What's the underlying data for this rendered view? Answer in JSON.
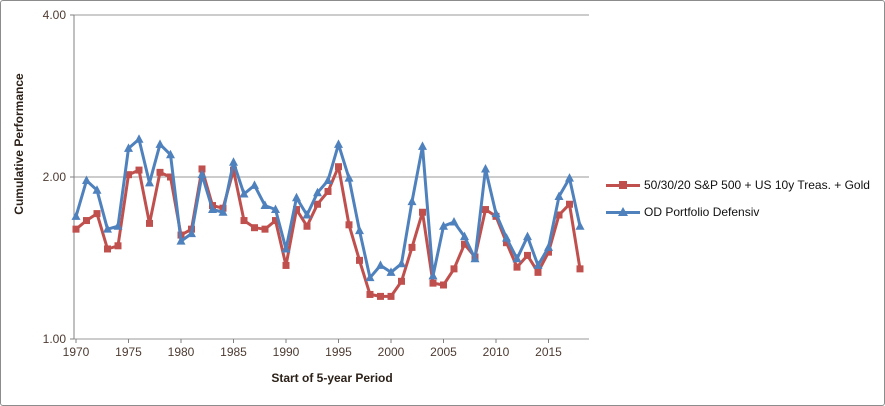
{
  "chart_data": {
    "type": "line",
    "title": "",
    "xlabel": "Start of 5-year Period",
    "ylabel": "Cumulative Performance",
    "y_scale": "log2",
    "ylim": [
      1.0,
      4.0
    ],
    "grid": "horizontal",
    "legend_position": "middle-right",
    "x": [
      1970,
      1971,
      1972,
      1973,
      1974,
      1975,
      1976,
      1977,
      1978,
      1979,
      1980,
      1981,
      1982,
      1983,
      1984,
      1985,
      1986,
      1987,
      1988,
      1989,
      1990,
      1991,
      1992,
      1993,
      1994,
      1995,
      1996,
      1997,
      1998,
      1999,
      2000,
      2001,
      2002,
      2003,
      2004,
      2005,
      2006,
      2007,
      2008,
      2009,
      2010,
      2011,
      2012,
      2013,
      2014,
      2015,
      2016,
      2017,
      2018
    ],
    "x_tick_years": [
      1970,
      1975,
      1980,
      1985,
      1990,
      1995,
      2000,
      2005,
      2010,
      2015
    ],
    "y_ticks": [
      {
        "v": 4.0,
        "label": "4.00"
      },
      {
        "v": 2.0,
        "label": "2.00"
      },
      {
        "v": 1.0,
        "label": "1.00"
      }
    ],
    "series": [
      {
        "name": "50/30/20 S&P 500 + US 10y Treas. + Gold",
        "color": "#C0504D",
        "marker": "square",
        "values": [
          1.6,
          1.66,
          1.71,
          1.47,
          1.49,
          2.02,
          2.06,
          1.64,
          2.04,
          2.0,
          1.56,
          1.6,
          2.07,
          1.77,
          1.75,
          2.06,
          1.66,
          1.61,
          1.6,
          1.66,
          1.37,
          1.74,
          1.62,
          1.78,
          1.88,
          2.09,
          1.63,
          1.4,
          1.21,
          1.2,
          1.2,
          1.28,
          1.48,
          1.72,
          1.27,
          1.26,
          1.35,
          1.5,
          1.42,
          1.74,
          1.69,
          1.51,
          1.36,
          1.43,
          1.33,
          1.45,
          1.7,
          1.78,
          1.35
        ]
      },
      {
        "name": "OD Portfolio Defensiv",
        "color": "#4F81BD",
        "marker": "triangle",
        "values": [
          1.69,
          1.97,
          1.89,
          1.6,
          1.62,
          2.26,
          2.35,
          1.95,
          2.3,
          2.2,
          1.52,
          1.57,
          2.02,
          1.74,
          1.72,
          2.13,
          1.86,
          1.93,
          1.77,
          1.74,
          1.47,
          1.83,
          1.7,
          1.87,
          1.97,
          2.3,
          1.99,
          1.59,
          1.3,
          1.37,
          1.33,
          1.38,
          1.8,
          2.28,
          1.31,
          1.62,
          1.65,
          1.55,
          1.41,
          2.07,
          1.71,
          1.54,
          1.41,
          1.55,
          1.37,
          1.48,
          1.84,
          1.99,
          1.62
        ]
      }
    ]
  },
  "colors": {
    "axis": "#808080",
    "gridline": "#9a9a9a",
    "tick_label": "#4d3b32",
    "frame_border": "#8c8c8c",
    "background": "#ffffff"
  }
}
